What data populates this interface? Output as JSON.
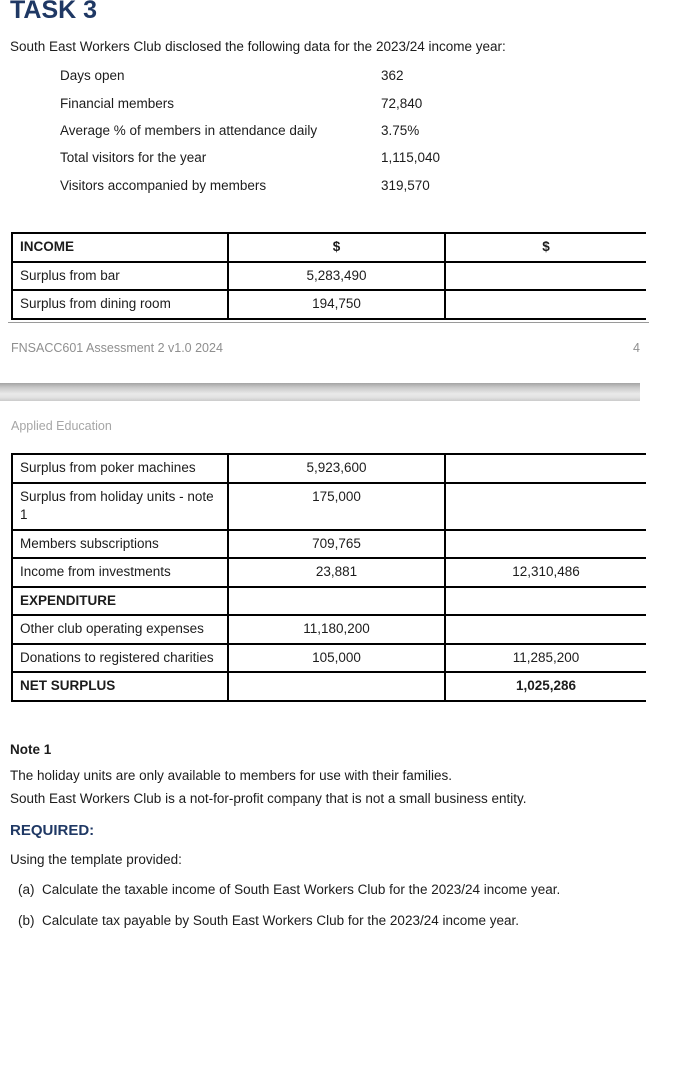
{
  "colors": {
    "navy": "#1f3864",
    "body_text": "#1c1c1c",
    "table_border": "#000000",
    "footer_gray": "#8f8f8f",
    "watermark_gray": "#a6a6a6"
  },
  "page1": {
    "title": "TASK 3",
    "intro": "South East Workers Club disclosed the following data for the 2023/24 income year:",
    "facts": [
      {
        "label": "Days open",
        "value": "362"
      },
      {
        "label": "Financial members",
        "value": "72,840"
      },
      {
        "label": "Average % of members in attendance daily",
        "value": "3.75%"
      },
      {
        "label": "Total visitors for the year",
        "value": "1,115,040"
      },
      {
        "label": "Visitors accompanied by members",
        "value": "319,570"
      }
    ],
    "footer_left": "FNSACC601 Assessment 2 v1.0 2024",
    "footer_page": "4"
  },
  "income_table": {
    "headers": [
      "INCOME",
      "$",
      "$"
    ],
    "rows_page1": [
      {
        "label": "Surplus from bar",
        "col2": "5,283,490",
        "col3": ""
      },
      {
        "label": "Surplus from dining room",
        "col2": "194,750",
        "col3": ""
      }
    ],
    "rows_page2": [
      {
        "label": "Surplus from poker machines",
        "col2": "5,923,600",
        "col3": ""
      },
      {
        "label": "Surplus from holiday units - note 1",
        "col2": "175,000",
        "col3": ""
      },
      {
        "label": "Members subscriptions",
        "col2": "709,765",
        "col3": ""
      },
      {
        "label": "Income from investments",
        "col2": "23,881",
        "col3": "12,310,486"
      },
      {
        "label": "EXPENDITURE",
        "col2": "",
        "col3": "",
        "bold": true
      },
      {
        "label": "Other club operating expenses",
        "col2": "11,180,200",
        "col3": ""
      },
      {
        "label": "Donations to registered charities",
        "col2": "105,000",
        "col3": "11,285,200"
      },
      {
        "label": "NET SURPLUS",
        "col2": "",
        "col3": "1,025,286",
        "bold": true
      }
    ]
  },
  "page2": {
    "header": "Applied Education",
    "note_heading": "Note 1",
    "note_lines": [
      "The holiday units are only available to members for use with their families.",
      "South East Workers Club is a not-for-profit company that is not a small business entity."
    ],
    "required_label": "REQUIRED:",
    "instructions_intro": "Using the template provided:",
    "items": [
      {
        "marker": "(a)",
        "text": "Calculate the taxable income of South East Workers Club for the 2023/24 income year."
      },
      {
        "marker": "(b)",
        "text": "Calculate tax payable by South East Workers Club for the 2023/24 income year."
      }
    ]
  }
}
